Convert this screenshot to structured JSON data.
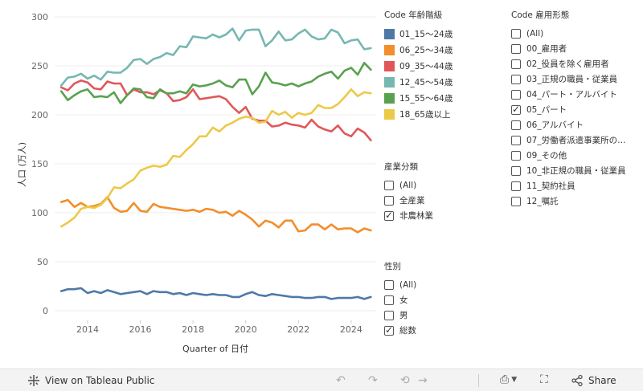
{
  "chart_data": {
    "type": "line",
    "xlabel": "Quarter of 日付",
    "ylabel": "人口 (万人)",
    "xlim": [
      2013.0,
      2024.75
    ],
    "ylim": [
      0,
      300
    ],
    "xticks": [
      2014,
      2016,
      2018,
      2020,
      2022,
      2024
    ],
    "yticks": [
      0,
      50,
      100,
      150,
      200,
      250,
      300
    ],
    "grid": "horizontal",
    "series": [
      {
        "name": "01_15〜24歳",
        "color": "#4e79a7",
        "x": [
          2013.0,
          2013.25,
          2013.5,
          2013.75,
          2014.0,
          2014.25,
          2014.5,
          2014.75,
          2015.0,
          2015.25,
          2015.5,
          2015.75,
          2016.0,
          2016.25,
          2016.5,
          2016.75,
          2017.0,
          2017.25,
          2017.5,
          2017.75,
          2018.0,
          2018.25,
          2018.5,
          2018.75,
          2019.0,
          2019.25,
          2019.5,
          2019.75,
          2020.0,
          2020.25,
          2020.5,
          2020.75,
          2021.0,
          2021.25,
          2021.5,
          2021.75,
          2022.0,
          2022.25,
          2022.5,
          2022.75,
          2023.0,
          2023.25,
          2023.5,
          2023.75,
          2024.0,
          2024.25,
          2024.5,
          2024.75
        ],
        "y": [
          20,
          22,
          22,
          23,
          18,
          20,
          18,
          21,
          19,
          17,
          18,
          19,
          20,
          17,
          20,
          19,
          19,
          17,
          18,
          16,
          18,
          17,
          16,
          17,
          16,
          16,
          14,
          14,
          17,
          19,
          16,
          15,
          17,
          16,
          15,
          14,
          14,
          13,
          13,
          14,
          14,
          12,
          13,
          13,
          13,
          14,
          12,
          14
        ]
      },
      {
        "name": "06_25〜34歳",
        "color": "#f28e2b",
        "x": [
          2013.0,
          2013.25,
          2013.5,
          2013.75,
          2014.0,
          2014.25,
          2014.5,
          2014.75,
          2015.0,
          2015.25,
          2015.5,
          2015.75,
          2016.0,
          2016.25,
          2016.5,
          2016.75,
          2017.0,
          2017.25,
          2017.5,
          2017.75,
          2018.0,
          2018.25,
          2018.5,
          2018.75,
          2019.0,
          2019.25,
          2019.5,
          2019.75,
          2020.0,
          2020.25,
          2020.5,
          2020.75,
          2021.0,
          2021.25,
          2021.5,
          2021.75,
          2022.0,
          2022.25,
          2022.5,
          2022.75,
          2023.0,
          2023.25,
          2023.5,
          2023.75,
          2024.0,
          2024.25,
          2024.5,
          2024.75
        ],
        "y": [
          111,
          113,
          106,
          110,
          106,
          107,
          109,
          116,
          105,
          101,
          102,
          110,
          102,
          101,
          109,
          106,
          105,
          104,
          103,
          102,
          103,
          101,
          104,
          103,
          100,
          101,
          97,
          102,
          98,
          93,
          86,
          92,
          90,
          85,
          92,
          92,
          81,
          82,
          88,
          88,
          83,
          88,
          83,
          84,
          84,
          80,
          84,
          82
        ]
      },
      {
        "name": "09_35〜44歳",
        "color": "#e15759",
        "x": [
          2013.0,
          2013.25,
          2013.5,
          2013.75,
          2014.0,
          2014.25,
          2014.5,
          2014.75,
          2015.0,
          2015.25,
          2015.5,
          2015.75,
          2016.0,
          2016.25,
          2016.5,
          2016.75,
          2017.0,
          2017.25,
          2017.5,
          2017.75,
          2018.0,
          2018.25,
          2018.5,
          2018.75,
          2019.0,
          2019.25,
          2019.5,
          2019.75,
          2020.0,
          2020.25,
          2020.5,
          2020.75,
          2021.0,
          2021.25,
          2021.5,
          2021.75,
          2022.0,
          2022.25,
          2022.5,
          2022.75,
          2023.0,
          2023.25,
          2023.5,
          2023.75,
          2024.0,
          2024.25,
          2024.5,
          2024.75
        ],
        "y": [
          228,
          225,
          232,
          235,
          233,
          227,
          226,
          234,
          232,
          232,
          220,
          226,
          223,
          223,
          221,
          225,
          222,
          214,
          215,
          218,
          226,
          216,
          217,
          218,
          219,
          216,
          208,
          202,
          208,
          196,
          194,
          194,
          188,
          189,
          192,
          190,
          189,
          187,
          195,
          188,
          185,
          183,
          189,
          181,
          178,
          186,
          182,
          174
        ]
      },
      {
        "name": "12_45〜54歳",
        "color": "#76b7b2",
        "x": [
          2013.0,
          2013.25,
          2013.5,
          2013.75,
          2014.0,
          2014.25,
          2014.5,
          2014.75,
          2015.0,
          2015.25,
          2015.5,
          2015.75,
          2016.0,
          2016.25,
          2016.5,
          2016.75,
          2017.0,
          2017.25,
          2017.5,
          2017.75,
          2018.0,
          2018.25,
          2018.5,
          2018.75,
          2019.0,
          2019.25,
          2019.5,
          2019.75,
          2020.0,
          2020.25,
          2020.5,
          2020.75,
          2021.0,
          2021.25,
          2021.5,
          2021.75,
          2022.0,
          2022.25,
          2022.5,
          2022.75,
          2023.0,
          2023.25,
          2023.5,
          2023.75,
          2024.0,
          2024.25,
          2024.5,
          2024.75
        ],
        "y": [
          230,
          238,
          239,
          242,
          237,
          240,
          236,
          244,
          243,
          243,
          248,
          256,
          257,
          252,
          257,
          259,
          263,
          261,
          270,
          269,
          280,
          279,
          278,
          282,
          279,
          282,
          288,
          276,
          286,
          287,
          287,
          270,
          276,
          285,
          276,
          277,
          283,
          287,
          280,
          277,
          278,
          287,
          284,
          273,
          276,
          277,
          267,
          268
        ]
      },
      {
        "name": "15_55〜64歳",
        "color": "#59a14f",
        "x": [
          2013.0,
          2013.25,
          2013.5,
          2013.75,
          2014.0,
          2014.25,
          2014.5,
          2014.75,
          2015.0,
          2015.25,
          2015.5,
          2015.75,
          2016.0,
          2016.25,
          2016.5,
          2016.75,
          2017.0,
          2017.25,
          2017.5,
          2017.75,
          2018.0,
          2018.25,
          2018.5,
          2018.75,
          2019.0,
          2019.25,
          2019.5,
          2019.75,
          2020.0,
          2020.25,
          2020.5,
          2020.75,
          2021.0,
          2021.25,
          2021.5,
          2021.75,
          2022.0,
          2022.25,
          2022.5,
          2022.75,
          2023.0,
          2023.25,
          2023.5,
          2023.75,
          2024.0,
          2024.25,
          2024.5,
          2024.75
        ],
        "y": [
          224,
          215,
          220,
          224,
          226,
          218,
          219,
          218,
          223,
          212,
          220,
          227,
          226,
          218,
          217,
          226,
          222,
          222,
          224,
          222,
          231,
          229,
          230,
          232,
          235,
          230,
          228,
          236,
          236,
          221,
          229,
          243,
          233,
          232,
          230,
          232,
          229,
          232,
          234,
          239,
          242,
          244,
          237,
          245,
          248,
          241,
          253,
          246
        ]
      },
      {
        "name": "18_65歳以上",
        "color": "#edc948",
        "x": [
          2013.0,
          2013.25,
          2013.5,
          2013.75,
          2014.0,
          2014.25,
          2014.5,
          2014.75,
          2015.0,
          2015.25,
          2015.5,
          2015.75,
          2016.0,
          2016.25,
          2016.5,
          2016.75,
          2017.0,
          2017.25,
          2017.5,
          2017.75,
          2018.0,
          2018.25,
          2018.5,
          2018.75,
          2019.0,
          2019.25,
          2019.5,
          2019.75,
          2020.0,
          2020.25,
          2020.5,
          2020.75,
          2021.0,
          2021.25,
          2021.5,
          2021.75,
          2022.0,
          2022.25,
          2022.5,
          2022.75,
          2023.0,
          2023.25,
          2023.5,
          2023.75,
          2024.0,
          2024.25,
          2024.5,
          2024.75
        ],
        "y": [
          86,
          90,
          95,
          104,
          106,
          105,
          108,
          115,
          126,
          125,
          130,
          134,
          143,
          146,
          148,
          147,
          149,
          158,
          157,
          164,
          170,
          178,
          178,
          187,
          183,
          189,
          192,
          196,
          198,
          197,
          192,
          193,
          204,
          200,
          203,
          197,
          202,
          200,
          202,
          210,
          207,
          207,
          211,
          218,
          226,
          219,
          223,
          222
        ]
      }
    ]
  },
  "legend": {
    "title": "Code 年齢階級",
    "items": [
      {
        "label": "01_15〜24歳",
        "color": "#4e79a7"
      },
      {
        "label": "06_25〜34歳",
        "color": "#f28e2b"
      },
      {
        "label": "09_35〜44歳",
        "color": "#e15759"
      },
      {
        "label": "12_45〜54歳",
        "color": "#76b7b2"
      },
      {
        "label": "15_55〜64歳",
        "color": "#59a14f"
      },
      {
        "label": "18_65歳以上",
        "color": "#edc948"
      }
    ]
  },
  "filters": {
    "industry": {
      "title": "産業分類",
      "items": [
        {
          "label": "(All)",
          "checked": false
        },
        {
          "label": "全産業",
          "checked": false
        },
        {
          "label": "非農林業",
          "checked": true
        }
      ]
    },
    "sex": {
      "title": "性別",
      "items": [
        {
          "label": "(All)",
          "checked": false
        },
        {
          "label": "女",
          "checked": false
        },
        {
          "label": "男",
          "checked": false
        },
        {
          "label": "総数",
          "checked": true
        }
      ]
    },
    "employment": {
      "title": "Code 雇用形態",
      "items": [
        {
          "label": "(All)",
          "checked": false
        },
        {
          "label": "00_雇用者",
          "checked": false
        },
        {
          "label": "02_役員を除く雇用者",
          "checked": false
        },
        {
          "label": "03_正規の職員・従業員",
          "checked": false
        },
        {
          "label": "04_パート・アルバイト",
          "checked": false
        },
        {
          "label": "05_パート",
          "checked": true
        },
        {
          "label": "06_アルバイト",
          "checked": false
        },
        {
          "label": "07_労働者派遣事業所の…",
          "checked": false
        },
        {
          "label": "09_その他",
          "checked": false
        },
        {
          "label": "10_非正規の職員・従業員",
          "checked": false
        },
        {
          "label": "11_契約社員",
          "checked": false
        },
        {
          "label": "12_嘱託",
          "checked": false
        }
      ]
    }
  },
  "toolbar": {
    "view_label": "View on Tableau Public",
    "share_label": "Share",
    "icons": [
      "tableau-icon",
      "undo-icon",
      "redo-icon",
      "revert-icon",
      "forward-icon",
      "download-icon",
      "fullscreen-icon",
      "share-icon"
    ]
  }
}
